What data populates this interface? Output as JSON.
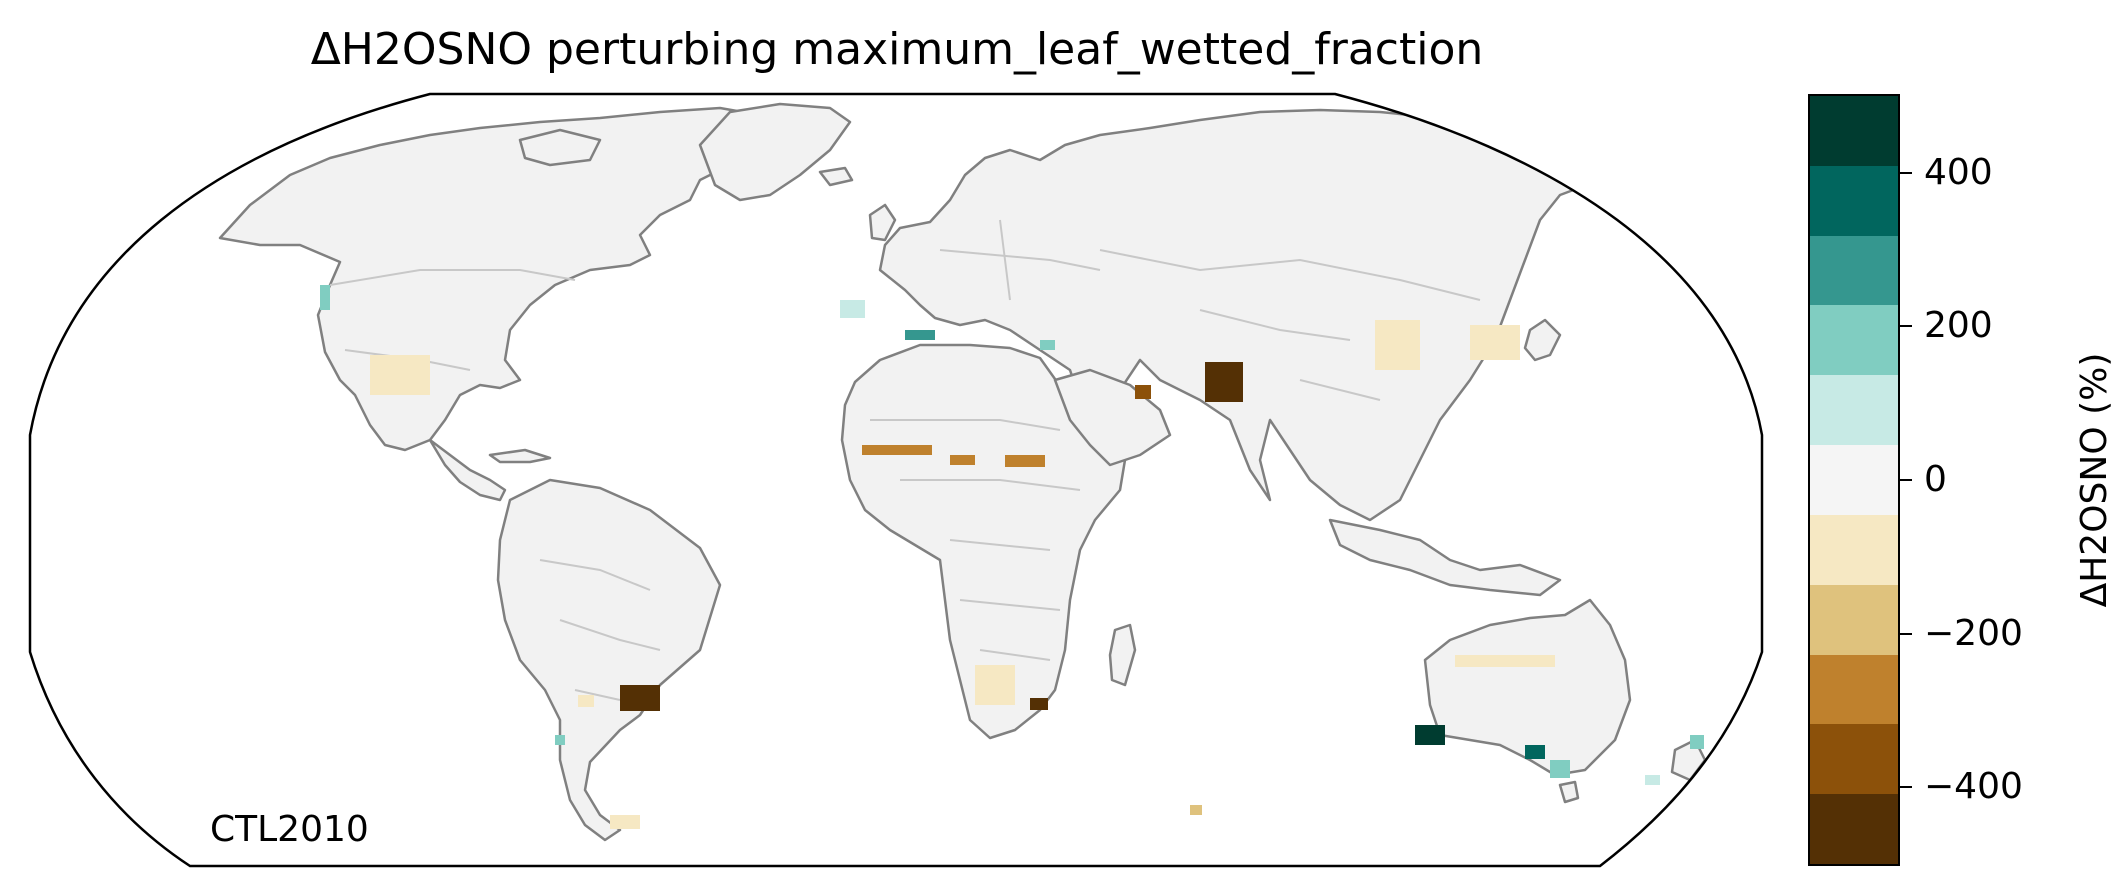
{
  "map": {
    "title": "ΔH2OSNO perturbing maximum_leaf_wetted_fraction",
    "label": "CTL2010",
    "projection": "robinson",
    "coastline_color": "#808080",
    "border_color": "#c8c8c8",
    "land_fill_color": "#f2f2f2",
    "ocean_color": "#ffffff"
  },
  "colorbar": {
    "label": "ΔH2OSNO (%)",
    "range": [
      -500,
      500
    ],
    "bin_edges": [
      -500,
      -400,
      -300,
      -200,
      -100,
      0,
      100,
      200,
      300,
      400,
      500
    ],
    "colors_top_to_bottom": [
      "#003c30",
      "#01665e",
      "#35978f",
      "#80cdc1",
      "#c7eae5",
      "#f5f5f5",
      "#f6e8c3",
      "#dfc27d",
      "#bf812d",
      "#8c510a",
      "#543005"
    ],
    "ticks": [
      {
        "value": 400,
        "label": "400"
      },
      {
        "value": 200,
        "label": "200"
      },
      {
        "value": 0,
        "label": "0"
      },
      {
        "value": -200,
        "label": "−200"
      },
      {
        "value": -400,
        "label": "−400"
      }
    ]
  }
}
